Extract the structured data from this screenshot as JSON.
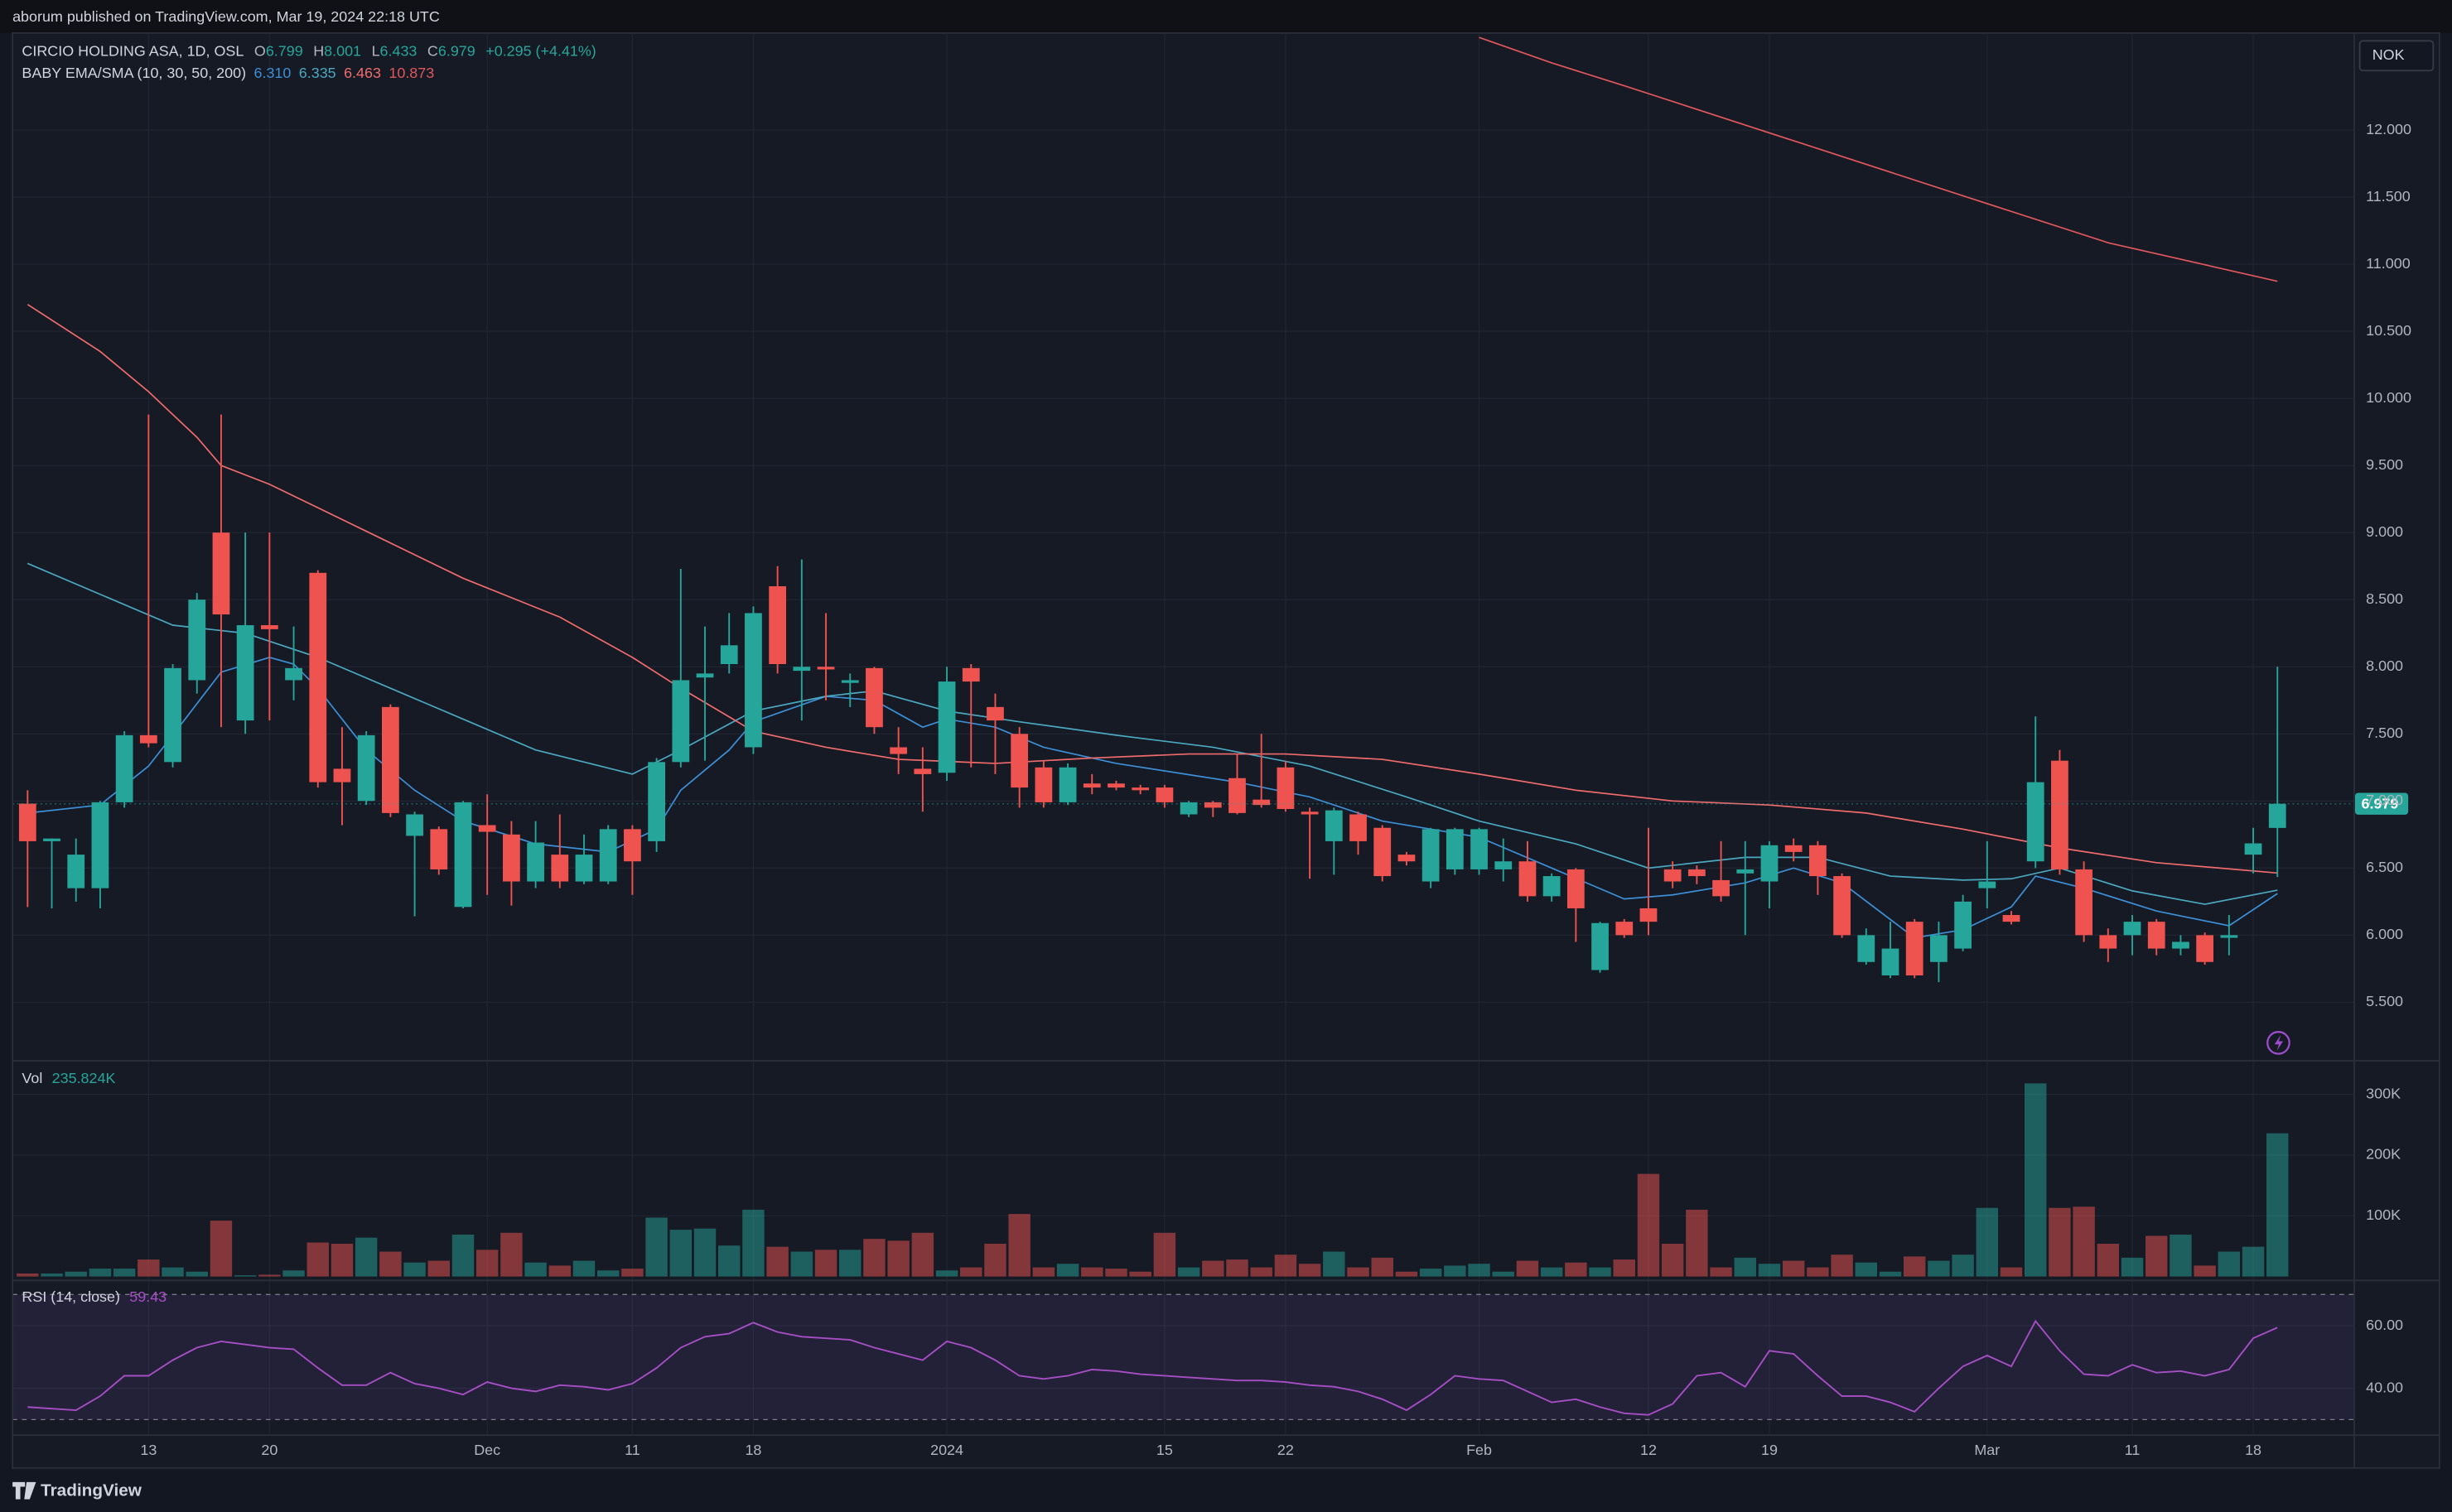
{
  "header": {
    "publisher": "aborum published on TradingView.com, Mar 19, 2024 22:18 UTC",
    "currency": "NOK",
    "footer_logo": "TradingView"
  },
  "chart_data": [
    {
      "type": "candlestick",
      "title": "CIRCIO HOLDING ASA, 1D, OSL",
      "ohlc_letters": [
        "O",
        "H",
        "L",
        "C"
      ],
      "change": "+0.295 (+4.41%)",
      "categories": [
        null,
        null,
        null,
        null,
        null,
        "13",
        null,
        null,
        null,
        null,
        "20",
        null,
        null,
        null,
        null,
        null,
        null,
        null,
        null,
        "Dec",
        null,
        null,
        null,
        null,
        null,
        "11",
        null,
        null,
        null,
        null,
        "18",
        null,
        null,
        null,
        null,
        null,
        null,
        null,
        "2024",
        null,
        null,
        null,
        null,
        null,
        null,
        null,
        null,
        "15",
        null,
        null,
        null,
        null,
        "22",
        null,
        null,
        null,
        null,
        null,
        null,
        null,
        "Feb",
        null,
        null,
        null,
        null,
        null,
        null,
        "12",
        null,
        null,
        null,
        null,
        "19",
        null,
        null,
        null,
        null,
        null,
        null,
        null,
        null,
        "Mar",
        null,
        null,
        null,
        null,
        null,
        "11",
        null,
        null,
        null,
        null,
        "18",
        null
      ],
      "open": [
        6.98,
        6.7,
        6.35,
        6.35,
        6.99,
        7.49,
        7.29,
        7.9,
        9.0,
        7.6,
        8.31,
        7.9,
        8.7,
        7.24,
        7.0,
        7.7,
        6.74,
        6.79,
        6.21,
        6.82,
        6.75,
        6.4,
        6.6,
        6.4,
        6.4,
        6.79,
        6.7,
        7.29,
        7.92,
        8.02,
        7.4,
        8.6,
        7.97,
        8.0,
        7.88,
        7.99,
        7.4,
        7.24,
        7.21,
        7.99,
        7.7,
        7.5,
        7.25,
        6.99,
        7.13,
        7.13,
        7.1,
        7.1,
        6.9,
        6.99,
        7.17,
        7.01,
        7.25,
        6.92,
        6.7,
        6.9,
        6.8,
        6.6,
        6.4,
        6.49,
        6.49,
        6.49,
        6.55,
        6.29,
        6.49,
        5.74,
        6.1,
        6.2,
        6.49,
        6.49,
        6.41,
        6.46,
        6.4,
        6.67,
        6.67,
        6.44,
        5.8,
        5.7,
        6.1,
        5.8,
        5.9,
        6.35,
        6.15,
        6.55,
        7.3,
        6.49,
        6.0,
        6.0,
        6.1,
        5.9,
        6.0,
        5.98,
        6.6,
        6.799
      ],
      "high": [
        7.08,
        6.72,
        6.72,
        7.0,
        7.52,
        9.88,
        8.02,
        8.55,
        9.88,
        9.0,
        9.0,
        8.3,
        8.72,
        7.55,
        7.52,
        7.72,
        6.92,
        6.81,
        7.0,
        7.05,
        6.85,
        6.85,
        6.9,
        6.75,
        6.82,
        6.82,
        7.32,
        8.73,
        8.3,
        8.4,
        8.45,
        8.75,
        8.8,
        8.4,
        7.95,
        8.0,
        7.55,
        7.4,
        8.0,
        8.02,
        7.8,
        7.55,
        7.3,
        7.28,
        7.2,
        7.15,
        7.12,
        7.12,
        7.0,
        7.0,
        7.35,
        7.5,
        7.3,
        6.95,
        6.95,
        6.92,
        6.82,
        6.62,
        6.8,
        6.8,
        6.8,
        6.72,
        6.7,
        6.46,
        6.5,
        6.1,
        6.12,
        6.8,
        6.55,
        6.52,
        6.7,
        6.7,
        6.7,
        6.72,
        6.7,
        6.46,
        6.05,
        6.1,
        6.12,
        6.1,
        6.3,
        6.7,
        6.18,
        7.63,
        7.38,
        6.55,
        6.05,
        6.15,
        6.12,
        6.0,
        6.02,
        6.15,
        6.8,
        8.001
      ],
      "low": [
        6.21,
        6.2,
        6.25,
        6.2,
        6.95,
        7.4,
        7.25,
        7.8,
        7.55,
        7.5,
        7.6,
        7.75,
        7.1,
        6.82,
        6.97,
        6.88,
        6.14,
        6.45,
        6.2,
        6.3,
        6.22,
        6.35,
        6.35,
        6.38,
        6.38,
        6.3,
        6.62,
        7.25,
        7.3,
        7.95,
        7.35,
        7.95,
        7.6,
        7.75,
        7.7,
        7.5,
        7.2,
        6.92,
        7.15,
        7.25,
        7.2,
        6.95,
        6.95,
        6.97,
        7.05,
        7.08,
        7.05,
        6.95,
        6.88,
        6.88,
        6.9,
        6.95,
        6.92,
        6.42,
        6.45,
        6.6,
        6.4,
        6.52,
        6.35,
        6.45,
        6.45,
        6.4,
        6.25,
        6.25,
        5.95,
        5.72,
        5.98,
        6.0,
        6.35,
        6.38,
        6.25,
        6.0,
        6.2,
        6.55,
        6.3,
        5.98,
        5.78,
        5.68,
        5.68,
        5.65,
        5.88,
        6.2,
        6.08,
        6.5,
        6.45,
        5.95,
        5.8,
        5.85,
        5.85,
        5.85,
        5.78,
        5.85,
        6.46,
        6.433
      ],
      "close": [
        6.7,
        6.72,
        6.6,
        6.99,
        7.49,
        7.43,
        7.99,
        8.5,
        8.39,
        8.31,
        8.28,
        7.99,
        7.14,
        7.14,
        7.49,
        6.91,
        6.9,
        6.49,
        6.99,
        6.77,
        6.4,
        6.69,
        6.4,
        6.6,
        6.79,
        6.55,
        7.29,
        7.9,
        7.95,
        8.16,
        8.4,
        8.02,
        8.0,
        7.98,
        7.9,
        7.55,
        7.35,
        7.2,
        7.89,
        7.89,
        7.6,
        7.1,
        6.99,
        7.25,
        7.1,
        7.1,
        7.08,
        6.99,
        6.99,
        6.95,
        6.91,
        6.97,
        6.94,
        6.9,
        6.93,
        6.7,
        6.44,
        6.55,
        6.79,
        6.79,
        6.79,
        6.55,
        6.29,
        6.44,
        6.2,
        6.09,
        6.0,
        6.1,
        6.4,
        6.44,
        6.29,
        6.49,
        6.67,
        6.62,
        6.44,
        6.0,
        6.0,
        5.9,
        5.7,
        6.0,
        6.25,
        6.4,
        6.1,
        7.14,
        6.49,
        6.0,
        5.9,
        6.1,
        5.9,
        5.95,
        5.8,
        6.0,
        6.684,
        6.979
      ],
      "up_color": "#26a69a",
      "down_color": "#ef5350",
      "ylim": [
        5.081,
        12.711
      ],
      "yticks": [
        {
          "value": 5.5,
          "label": "5.500"
        },
        {
          "value": 6,
          "label": "6.000"
        },
        {
          "value": 6.5,
          "label": "6.500"
        },
        {
          "value": 7,
          "label": "7.000"
        },
        {
          "value": 7.5,
          "label": "7.500"
        },
        {
          "value": 8,
          "label": "8.000"
        },
        {
          "value": 8.5,
          "label": "8.500"
        },
        {
          "value": 9,
          "label": "9.000"
        },
        {
          "value": 9.5,
          "label": "9.500"
        },
        {
          "value": 10,
          "label": "10.000"
        },
        {
          "value": 10.5,
          "label": "10.500"
        },
        {
          "value": 11,
          "label": "11.000"
        },
        {
          "value": 11.5,
          "label": "11.500"
        },
        {
          "value": 12,
          "label": "12.000"
        }
      ],
      "grid": true,
      "overlay": {
        "title": "BABY EMA/SMA (10, 30, 50, 200)",
        "series": [
          {
            "color": "#3d8fd6",
            "value_label": "6.310",
            "x": [
              0,
              3,
              5,
              6,
              8,
              10,
              11,
              12,
              14,
              16,
              18,
              21,
              24,
              26,
              27,
              29,
              30,
              33,
              35,
              37,
              38,
              40,
              42,
              45,
              50,
              53,
              56,
              60,
              63,
              66,
              68,
              71,
              73,
              75,
              78,
              80,
              82,
              83,
              85,
              88,
              91,
              93
            ],
            "values": [
              6.91,
              6.97,
              7.26,
              7.49,
              7.96,
              8.07,
              8.02,
              7.84,
              7.38,
              7.08,
              6.85,
              6.68,
              6.62,
              6.79,
              7.08,
              7.38,
              7.59,
              7.78,
              7.75,
              7.55,
              7.61,
              7.55,
              7.4,
              7.28,
              7.14,
              7.03,
              6.85,
              6.73,
              6.5,
              6.27,
              6.3,
              6.39,
              6.5,
              6.39,
              5.98,
              6.04,
              6.21,
              6.44,
              6.35,
              6.18,
              6.07,
              6.31
            ]
          },
          {
            "color": "#4aa8c0",
            "value_label": "6.335",
            "x": [
              0,
              3,
              6,
              9,
              12,
              15,
              18,
              21,
              25,
              27,
              30,
              33,
              35,
              38,
              41,
              45,
              49,
              53,
              57,
              60,
              64,
              67,
              71,
              74,
              77,
              80,
              82,
              84,
              87,
              90,
              93
            ],
            "values": [
              8.77,
              8.54,
              8.31,
              8.25,
              8.07,
              7.84,
              7.61,
              7.38,
              7.2,
              7.38,
              7.67,
              7.78,
              7.82,
              7.67,
              7.59,
              7.49,
              7.4,
              7.26,
              7.03,
              6.85,
              6.68,
              6.5,
              6.58,
              6.58,
              6.44,
              6.41,
              6.42,
              6.5,
              6.33,
              6.23,
              6.335
            ]
          },
          {
            "color": "#f06c6c",
            "value_label": "6.463",
            "x": [
              0,
              3,
              5,
              7,
              8,
              10,
              14,
              18,
              22,
              25,
              27,
              30,
              33,
              36,
              40,
              44,
              48,
              52,
              56,
              60,
              64,
              68,
              72,
              76,
              80,
              84,
              88,
              93
            ],
            "values": [
              10.7,
              10.35,
              10.05,
              9.71,
              9.5,
              9.36,
              9.01,
              8.66,
              8.37,
              8.07,
              7.84,
              7.52,
              7.4,
              7.31,
              7.28,
              7.32,
              7.35,
              7.35,
              7.31,
              7.2,
              7.08,
              7.0,
              6.97,
              6.91,
              6.79,
              6.65,
              6.54,
              6.463
            ]
          },
          {
            "color": "#e0575c",
            "value_label": "10.873",
            "x": [
              60,
              63,
              66,
              73,
              80,
              86,
              93
            ],
            "values": [
              12.69,
              12.5,
              12.33,
              11.92,
              11.51,
              11.16,
              10.873
            ]
          }
        ]
      }
    },
    {
      "type": "bar",
      "title": "Vol",
      "value_label": "235.824K",
      "values": [
        5000,
        5000,
        8000,
        13000,
        13000,
        28000,
        15000,
        8000,
        92000,
        2000,
        3000,
        10000,
        56000,
        54000,
        64000,
        41000,
        23000,
        26000,
        69000,
        44000,
        72000,
        23000,
        18000,
        26000,
        10000,
        13000,
        97000,
        77000,
        79000,
        51000,
        110000,
        49000,
        41000,
        44000,
        44000,
        62000,
        59000,
        72000,
        10000,
        15000,
        54000,
        103000,
        15000,
        21000,
        15000,
        13000,
        8000,
        72000,
        15000,
        26000,
        28000,
        15000,
        36000,
        21000,
        41000,
        15000,
        31000,
        8000,
        13000,
        18000,
        21000,
        8000,
        26000,
        15000,
        23000,
        15000,
        28000,
        169000,
        54000,
        110000,
        15000,
        31000,
        21000,
        26000,
        15000,
        36000,
        23000,
        8000,
        33000,
        26000,
        36000,
        113000,
        15000,
        318000,
        113000,
        115000,
        54000,
        31000,
        67000,
        69000,
        18000,
        41000,
        49000,
        235824
      ],
      "ylim": [
        0,
        350000
      ],
      "yticks": [
        {
          "value": 100000,
          "label": "100K"
        },
        {
          "value": 200000,
          "label": "200K"
        },
        {
          "value": 300000,
          "label": "300K"
        }
      ],
      "grid": true
    },
    {
      "type": "line",
      "title": "RSI (14, close)",
      "value_label": "59.43",
      "color": "#a64fc4",
      "values": [
        34,
        33.5,
        33,
        37.5,
        44,
        44,
        49,
        53,
        55,
        54,
        53,
        52.5,
        46.5,
        41,
        41,
        45,
        41.5,
        40,
        38,
        42,
        40,
        39,
        41,
        40.5,
        39.5,
        41.5,
        46.5,
        53,
        56.5,
        57.5,
        61,
        58,
        56.5,
        56,
        55.5,
        53,
        51,
        49,
        55,
        53,
        49,
        44,
        43,
        44,
        46,
        45.5,
        44.5,
        44,
        43.5,
        43,
        42.5,
        42.5,
        42,
        41,
        40.5,
        39,
        36.5,
        33,
        38,
        44,
        43,
        42.5,
        39,
        35.5,
        36.5,
        34,
        32,
        31.5,
        35,
        44,
        45,
        40.5,
        52,
        51,
        44,
        37.5,
        37.5,
        35.5,
        32.5,
        40,
        47,
        50.5,
        47,
        61.5,
        52,
        44.5,
        44,
        47.5,
        45,
        45.5,
        44,
        46,
        56,
        59.43
      ],
      "bands": [
        30,
        70
      ],
      "ylim": [
        26,
        73
      ],
      "yticks": [
        {
          "value": 40,
          "label": "40.00"
        },
        {
          "value": 60,
          "label": "60.00"
        }
      ],
      "grid": true
    }
  ]
}
